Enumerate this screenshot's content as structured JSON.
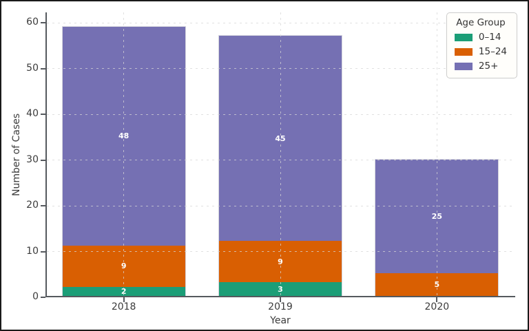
{
  "chart_data": {
    "type": "bar",
    "stacked": true,
    "xlabel": "Year",
    "ylabel": "Number of Cases",
    "categories": [
      "2018",
      "2019",
      "2020"
    ],
    "series": [
      {
        "name": "0–14",
        "color": "#1b9e77",
        "values": [
          2,
          3,
          0
        ]
      },
      {
        "name": "15–24",
        "color": "#d95f02",
        "values": [
          9,
          9,
          5
        ]
      },
      {
        "name": "25+",
        "color": "#7570b3",
        "values": [
          48,
          45,
          25
        ]
      }
    ],
    "totals": [
      59,
      57,
      30
    ],
    "ylim": [
      0,
      60
    ],
    "yticks": [
      0,
      10,
      20,
      30,
      40,
      50,
      60
    ],
    "grid": "dashed, light gray, both axes",
    "legend": {
      "title": "Age Group",
      "position": "upper right"
    },
    "bar_label_style": "white bold, centered in segment, omitted when value is 0",
    "spine_color": "#55595e",
    "background_color": "#ffffff"
  }
}
